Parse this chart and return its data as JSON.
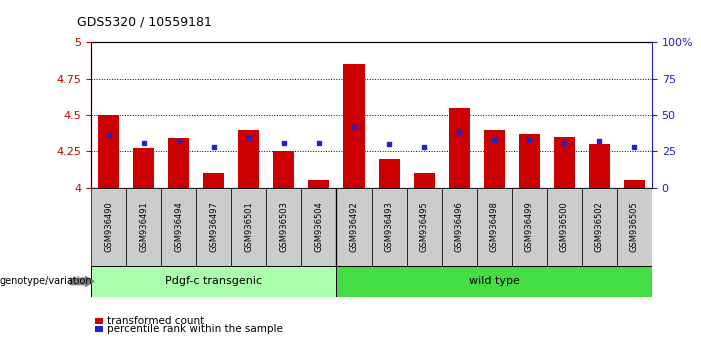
{
  "title": "GDS5320 / 10559181",
  "samples": [
    "GSM936490",
    "GSM936491",
    "GSM936494",
    "GSM936497",
    "GSM936501",
    "GSM936503",
    "GSM936504",
    "GSM936492",
    "GSM936493",
    "GSM936495",
    "GSM936496",
    "GSM936498",
    "GSM936499",
    "GSM936500",
    "GSM936502",
    "GSM936505"
  ],
  "red_values": [
    4.5,
    4.27,
    4.34,
    4.1,
    4.4,
    4.25,
    4.05,
    4.85,
    4.2,
    4.1,
    4.55,
    4.4,
    4.37,
    4.35,
    4.3,
    4.05
  ],
  "blue_values": [
    4.36,
    4.31,
    4.32,
    4.28,
    4.34,
    4.31,
    4.31,
    4.42,
    4.3,
    4.28,
    4.38,
    4.33,
    4.33,
    4.31,
    4.32,
    4.28
  ],
  "group1_label": "Pdgf-c transgenic",
  "group2_label": "wild type",
  "group1_count": 7,
  "group2_count": 9,
  "genotype_label": "genotype/variation",
  "legend1": "transformed count",
  "legend2": "percentile rank within the sample",
  "ymin": 4.0,
  "ymax": 5.0,
  "yticks": [
    4.0,
    4.25,
    4.5,
    4.75,
    5.0
  ],
  "ytick_labels": [
    "4",
    "4.25",
    "4.5",
    "4.75",
    "5"
  ],
  "right_yticks": [
    0,
    25,
    50,
    75,
    100
  ],
  "right_ytick_labels": [
    "0",
    "25",
    "50",
    "75",
    "100%"
  ],
  "bar_color": "#cc0000",
  "dot_color": "#2222cc",
  "bg_color": "#ffffff",
  "xtick_bg": "#cccccc",
  "group1_color": "#aaffaa",
  "group2_color": "#44dd44",
  "axis_color_left": "#cc0000",
  "axis_color_right": "#2222cc"
}
